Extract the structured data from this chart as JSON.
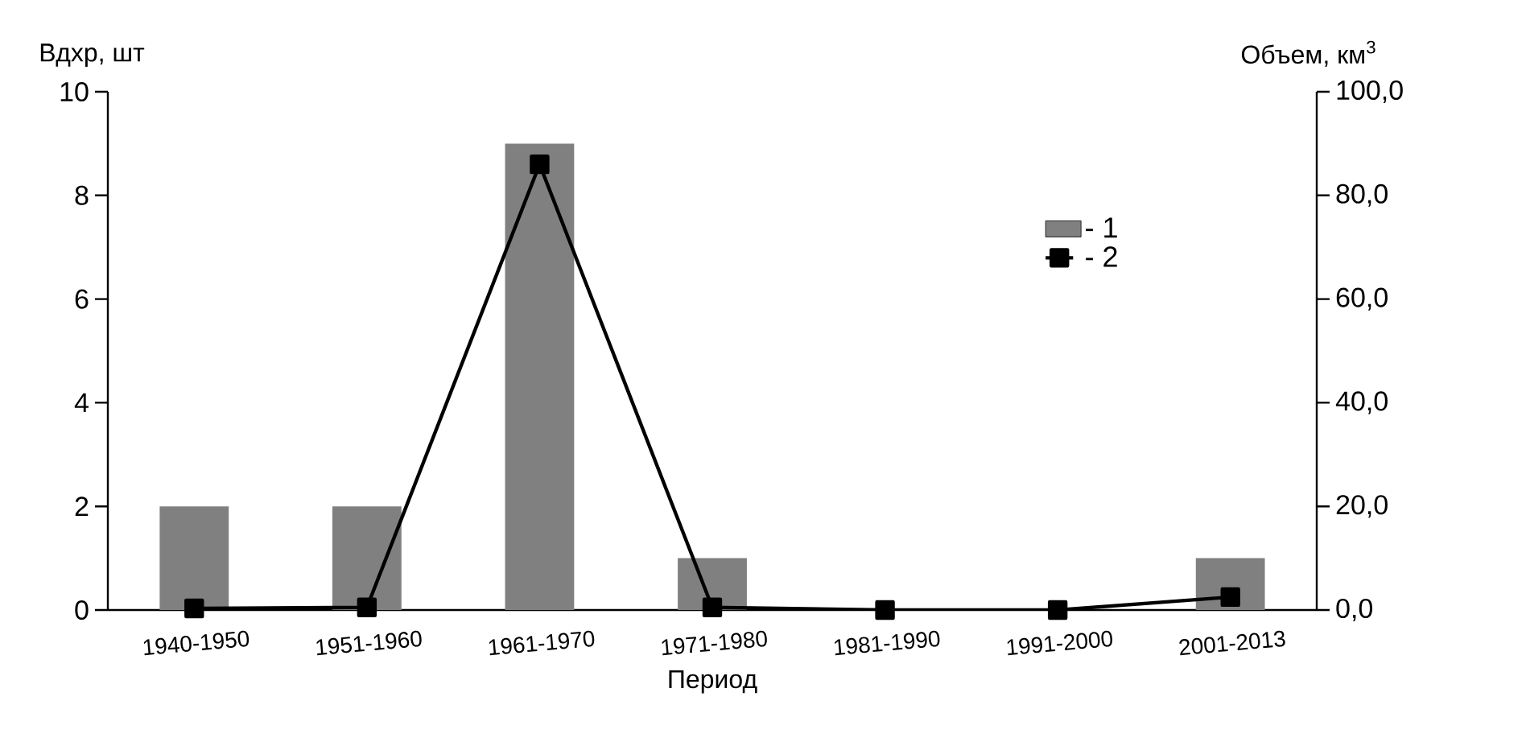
{
  "chart_data": {
    "type": "bar",
    "xlabel": "Период",
    "ylabel": "Вдхр, шт",
    "y2label": "Объем, км$^{3}$",
    "categories": [
      "1940-1950",
      "1951-1960",
      "1961-1970",
      "1971-1980",
      "1981-1990",
      "1991-2000",
      "2001-2013"
    ],
    "series": [
      {
        "name": "- 1",
        "type": "bar",
        "color": "#808080",
        "values": [
          2,
          2,
          9,
          1,
          0,
          0,
          1
        ]
      },
      {
        "name": "- 2",
        "type": "line",
        "axis": "y2",
        "color": "#000000",
        "marker": "square",
        "values": [
          0.3,
          0.5,
          86,
          0.5,
          0,
          0,
          2.5
        ]
      }
    ],
    "ylim": [
      0,
      10
    ],
    "yticks": [
      0,
      2,
      4,
      6,
      8,
      10
    ],
    "y2lim": [
      0,
      100
    ],
    "y2ticks": [
      {
        "value": 0,
        "label": "0,0"
      },
      {
        "value": 20,
        "label": "20,0"
      },
      {
        "value": 40,
        "label": "40,0"
      },
      {
        "value": 60,
        "label": "60,0"
      },
      {
        "value": 80,
        "label": "80,0"
      },
      {
        "value": 100,
        "label": "100,0"
      }
    ],
    "legend": "right"
  }
}
